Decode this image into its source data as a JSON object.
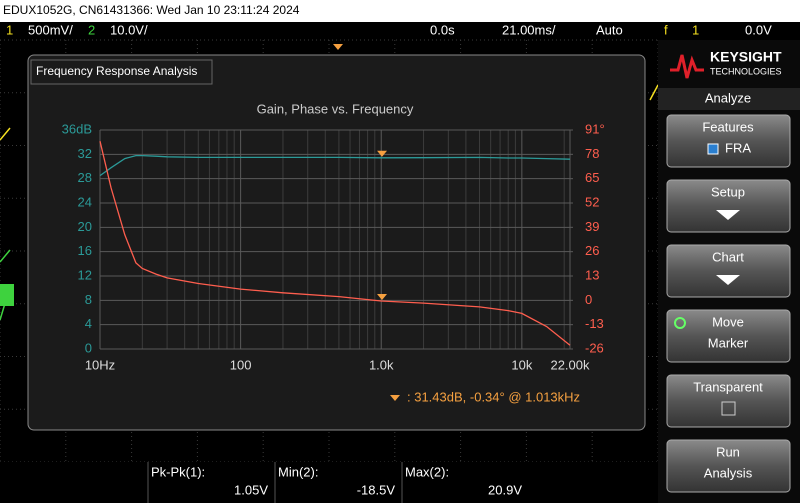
{
  "header": {
    "title": "EDUX1052G, CN61431366: Wed Jan 10 23:11:24 2024"
  },
  "status_bar": {
    "ch1_label": "1",
    "ch1_scale": "500mV/",
    "ch2_label": "2",
    "ch2_scale": "10.0V/",
    "time_offset": "0.0s",
    "time_scale": "21.00ms/",
    "trigger_mode": "Auto",
    "trigger_icon": "f",
    "trigger_channel": "1",
    "trigger_level": "0.0V"
  },
  "fra_window": {
    "title": "Frequency Response Analysis",
    "chart": {
      "type": "line",
      "title": "Gain, Phase vs. Frequency",
      "log_x": true,
      "grid": true,
      "x": [
        10,
        12,
        15,
        18,
        20,
        25,
        30,
        50,
        100,
        200,
        500,
        1000,
        2000,
        5000,
        8000,
        10000,
        15000,
        22000
      ],
      "xlim": [
        10,
        22000
      ],
      "xticks": [
        {
          "value": 10,
          "label": "10Hz"
        },
        100,
        {
          "value": 1000,
          "label": "1.0k"
        },
        {
          "value": 10000,
          "label": "10k"
        },
        {
          "value": 22000,
          "label": "22.00k"
        }
      ],
      "ylim": [
        0,
        36
      ],
      "yticks": [
        {
          "value": 36,
          "label": "36dB"
        },
        32,
        28,
        24,
        20,
        16,
        12,
        8,
        4,
        0
      ],
      "y2lim": [
        -26,
        91
      ],
      "y2ticks": [
        {
          "value": 91,
          "label": "91°"
        },
        78,
        65,
        52,
        39,
        26,
        13,
        0,
        -13,
        -26
      ],
      "series": [
        {
          "color": "#2b9a98",
          "values": [
            28.5,
            29.8,
            31.3,
            31.8,
            31.8,
            31.7,
            31.6,
            31.5,
            31.5,
            31.5,
            31.5,
            31.43,
            31.45,
            31.5,
            31.4,
            31.4,
            31.3,
            31.2
          ]
        },
        {
          "color": "#ff5e4e",
          "axis": "y2",
          "values": [
            85,
            60,
            35,
            20,
            17,
            14,
            12,
            9,
            6,
            4,
            2,
            -0.34,
            -1.5,
            -3.5,
            -5.5,
            -7,
            -14,
            -24
          ]
        }
      ],
      "marker": {
        "x": 1013,
        "gain": 31.43,
        "phase": -0.34,
        "color": "#f5a040",
        "readout": ":  31.43dB, -0.34° @ 1.013kHz"
      }
    }
  },
  "measurements": [
    {
      "label": "Pk-Pk(1):",
      "value": "1.05V"
    },
    {
      "label": "Min(2):",
      "value": "-18.5V"
    },
    {
      "label": "Max(2):",
      "value": "20.9V"
    }
  ],
  "sidebar": {
    "brand": "KEYSIGHT",
    "brand_sub": "TECHNOLOGIES",
    "menu_title": "Analyze",
    "buttons": [
      {
        "line1": "Features",
        "line2": "FRA"
      },
      {
        "line1": "Setup"
      },
      {
        "line1": "Chart"
      },
      {
        "line1": "Move",
        "line2": "Marker"
      },
      {
        "line1": "Transparent"
      },
      {
        "line1": "Run",
        "line2": "Analysis"
      }
    ]
  }
}
